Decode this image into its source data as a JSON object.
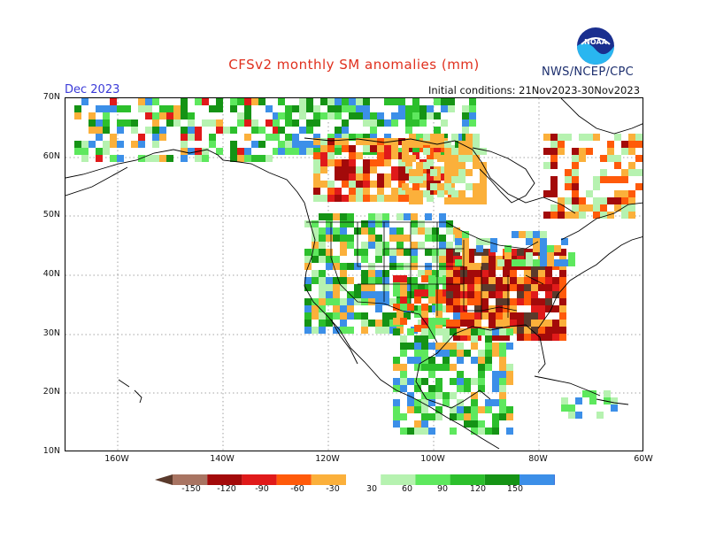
{
  "title": "CFSv2 monthly SM anomalies (mm)",
  "organization": "NWS/NCEP/CPC",
  "logo_text": "NOAA",
  "month": "Dec 2023",
  "initial_conditions": "Initial conditions: 21Nov2023-30Nov2023",
  "lat_labels": [
    "70N",
    "60N",
    "50N",
    "40N",
    "30N",
    "20N",
    "10N"
  ],
  "lon_labels": [
    "160W",
    "140W",
    "120W",
    "100W",
    "80W",
    "60W"
  ],
  "colorbar": {
    "labels": [
      "-150",
      "-120",
      "-90",
      "-60",
      "-30",
      "30",
      "60",
      "90",
      "120",
      "150"
    ],
    "colors": [
      "#5a3a2c",
      "#a87462",
      "#a30a0a",
      "#e01a1a",
      "#ff5a0a",
      "#fbb03b",
      "#ffffff",
      "#b6f2b0",
      "#5ee85e",
      "#2cbf2c",
      "#159315",
      "#3c8fe8",
      "#1e5ad4"
    ]
  },
  "anomaly_colors": {
    "dry_extreme": "#5a3a2c",
    "dry_strong": "#a30a0a",
    "dry": "#e01a1a",
    "dry_mild": "#ff5a0a",
    "dry_weak": "#fbb03b",
    "wet_weak": "#b6f2b0",
    "wet": "#5ee85e",
    "wet_mid": "#2cbf2c",
    "wet_strong": "#159315",
    "wet_extreme": "#3c8fe8"
  }
}
